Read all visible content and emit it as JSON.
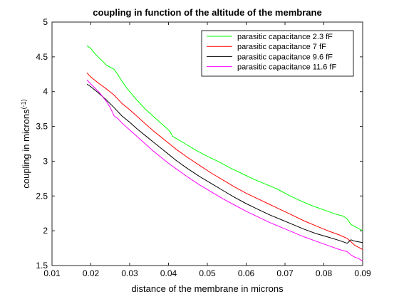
{
  "chart_data": {
    "type": "line",
    "title": "coupling in function of the altitude of the membrane",
    "xlabel": "distance of the membrane in microns",
    "ylabel": "coupling in microns",
    "ylabel_superscript": "(-1)",
    "xlim": [
      0.01,
      0.09
    ],
    "ylim": [
      1.5,
      5
    ],
    "xticks": [
      "0.01",
      "0.02",
      "0.03",
      "0.04",
      "0.05",
      "0.06",
      "0.07",
      "0.08",
      "0.09"
    ],
    "yticks": [
      "1.5",
      "2",
      "2.5",
      "3",
      "3.5",
      "4",
      "4.5",
      "5"
    ],
    "grid": false,
    "legend_position": "top-right",
    "series": [
      {
        "name": "parasitic capacitance 2.3 fF",
        "color": "#00ff00",
        "points": [
          [
            0.019,
            4.66
          ],
          [
            0.02,
            4.62
          ],
          [
            0.021,
            4.55
          ],
          [
            0.022,
            4.49
          ],
          [
            0.023,
            4.44
          ],
          [
            0.024,
            4.38
          ],
          [
            0.025,
            4.35
          ],
          [
            0.026,
            4.32
          ],
          [
            0.027,
            4.24
          ],
          [
            0.028,
            4.15
          ],
          [
            0.029,
            4.07
          ],
          [
            0.03,
            4.0
          ],
          [
            0.032,
            3.87
          ],
          [
            0.034,
            3.75
          ],
          [
            0.036,
            3.65
          ],
          [
            0.038,
            3.55
          ],
          [
            0.04,
            3.45
          ],
          [
            0.0405,
            3.42
          ],
          [
            0.041,
            3.36
          ],
          [
            0.044,
            3.26
          ],
          [
            0.047,
            3.16
          ],
          [
            0.05,
            3.07
          ],
          [
            0.053,
            2.99
          ],
          [
            0.056,
            2.9
          ],
          [
            0.059,
            2.82
          ],
          [
            0.062,
            2.74
          ],
          [
            0.065,
            2.67
          ],
          [
            0.068,
            2.6
          ],
          [
            0.071,
            2.51
          ],
          [
            0.074,
            2.43
          ],
          [
            0.077,
            2.36
          ],
          [
            0.08,
            2.3
          ],
          [
            0.083,
            2.24
          ],
          [
            0.085,
            2.21
          ],
          [
            0.086,
            2.17
          ],
          [
            0.087,
            2.09
          ],
          [
            0.088,
            2.06
          ],
          [
            0.089,
            2.03
          ],
          [
            0.09,
            2.0
          ]
        ]
      },
      {
        "name": "parasitic capacitance 7 fF",
        "color": "#ff0000",
        "points": [
          [
            0.019,
            4.27
          ],
          [
            0.02,
            4.21
          ],
          [
            0.022,
            4.12
          ],
          [
            0.024,
            4.04
          ],
          [
            0.026,
            3.95
          ],
          [
            0.028,
            3.83
          ],
          [
            0.03,
            3.74
          ],
          [
            0.032,
            3.64
          ],
          [
            0.034,
            3.54
          ],
          [
            0.036,
            3.44
          ],
          [
            0.038,
            3.35
          ],
          [
            0.04,
            3.26
          ],
          [
            0.042,
            3.17
          ],
          [
            0.045,
            3.05
          ],
          [
            0.048,
            2.94
          ],
          [
            0.051,
            2.83
          ],
          [
            0.054,
            2.73
          ],
          [
            0.057,
            2.63
          ],
          [
            0.06,
            2.54
          ],
          [
            0.063,
            2.46
          ],
          [
            0.066,
            2.38
          ],
          [
            0.069,
            2.3
          ],
          [
            0.072,
            2.22
          ],
          [
            0.075,
            2.14
          ],
          [
            0.078,
            2.07
          ],
          [
            0.081,
            2.0
          ],
          [
            0.084,
            1.94
          ],
          [
            0.086,
            1.89
          ],
          [
            0.087,
            1.84
          ],
          [
            0.088,
            1.79
          ],
          [
            0.089,
            1.76
          ],
          [
            0.09,
            1.73
          ]
        ]
      },
      {
        "name": "parasitic capacitance 9.6 fF",
        "color": "#000000",
        "points": [
          [
            0.019,
            4.11
          ],
          [
            0.02,
            4.07
          ],
          [
            0.022,
            3.98
          ],
          [
            0.024,
            3.88
          ],
          [
            0.026,
            3.77
          ],
          [
            0.028,
            3.65
          ],
          [
            0.03,
            3.56
          ],
          [
            0.032,
            3.46
          ],
          [
            0.034,
            3.37
          ],
          [
            0.036,
            3.28
          ],
          [
            0.038,
            3.19
          ],
          [
            0.04,
            3.1
          ],
          [
            0.042,
            3.01
          ],
          [
            0.045,
            2.89
          ],
          [
            0.048,
            2.78
          ],
          [
            0.051,
            2.68
          ],
          [
            0.054,
            2.58
          ],
          [
            0.057,
            2.48
          ],
          [
            0.06,
            2.39
          ],
          [
            0.063,
            2.31
          ],
          [
            0.066,
            2.23
          ],
          [
            0.069,
            2.16
          ],
          [
            0.072,
            2.09
          ],
          [
            0.075,
            2.02
          ],
          [
            0.078,
            1.96
          ],
          [
            0.081,
            1.91
          ],
          [
            0.084,
            1.86
          ],
          [
            0.086,
            1.82
          ],
          [
            0.087,
            1.87
          ],
          [
            0.088,
            1.85
          ],
          [
            0.089,
            1.84
          ],
          [
            0.09,
            1.83
          ]
        ]
      },
      {
        "name": "parasitic capacitance 11.6 fF",
        "color": "#ff00ff",
        "points": [
          [
            0.019,
            4.17
          ],
          [
            0.02,
            4.11
          ],
          [
            0.022,
            4.0
          ],
          [
            0.024,
            3.86
          ],
          [
            0.025,
            3.77
          ],
          [
            0.026,
            3.65
          ],
          [
            0.027,
            3.61
          ],
          [
            0.028,
            3.55
          ],
          [
            0.03,
            3.45
          ],
          [
            0.032,
            3.35
          ],
          [
            0.034,
            3.25
          ],
          [
            0.036,
            3.15
          ],
          [
            0.038,
            3.06
          ],
          [
            0.04,
            2.97
          ],
          [
            0.042,
            2.89
          ],
          [
            0.045,
            2.77
          ],
          [
            0.048,
            2.66
          ],
          [
            0.051,
            2.56
          ],
          [
            0.054,
            2.46
          ],
          [
            0.057,
            2.37
          ],
          [
            0.06,
            2.28
          ],
          [
            0.063,
            2.2
          ],
          [
            0.066,
            2.12
          ],
          [
            0.069,
            2.05
          ],
          [
            0.072,
            1.98
          ],
          [
            0.075,
            1.91
          ],
          [
            0.078,
            1.85
          ],
          [
            0.081,
            1.79
          ],
          [
            0.084,
            1.73
          ],
          [
            0.086,
            1.7
          ],
          [
            0.087,
            1.65
          ],
          [
            0.088,
            1.62
          ],
          [
            0.089,
            1.6
          ],
          [
            0.09,
            1.56
          ]
        ]
      }
    ]
  }
}
